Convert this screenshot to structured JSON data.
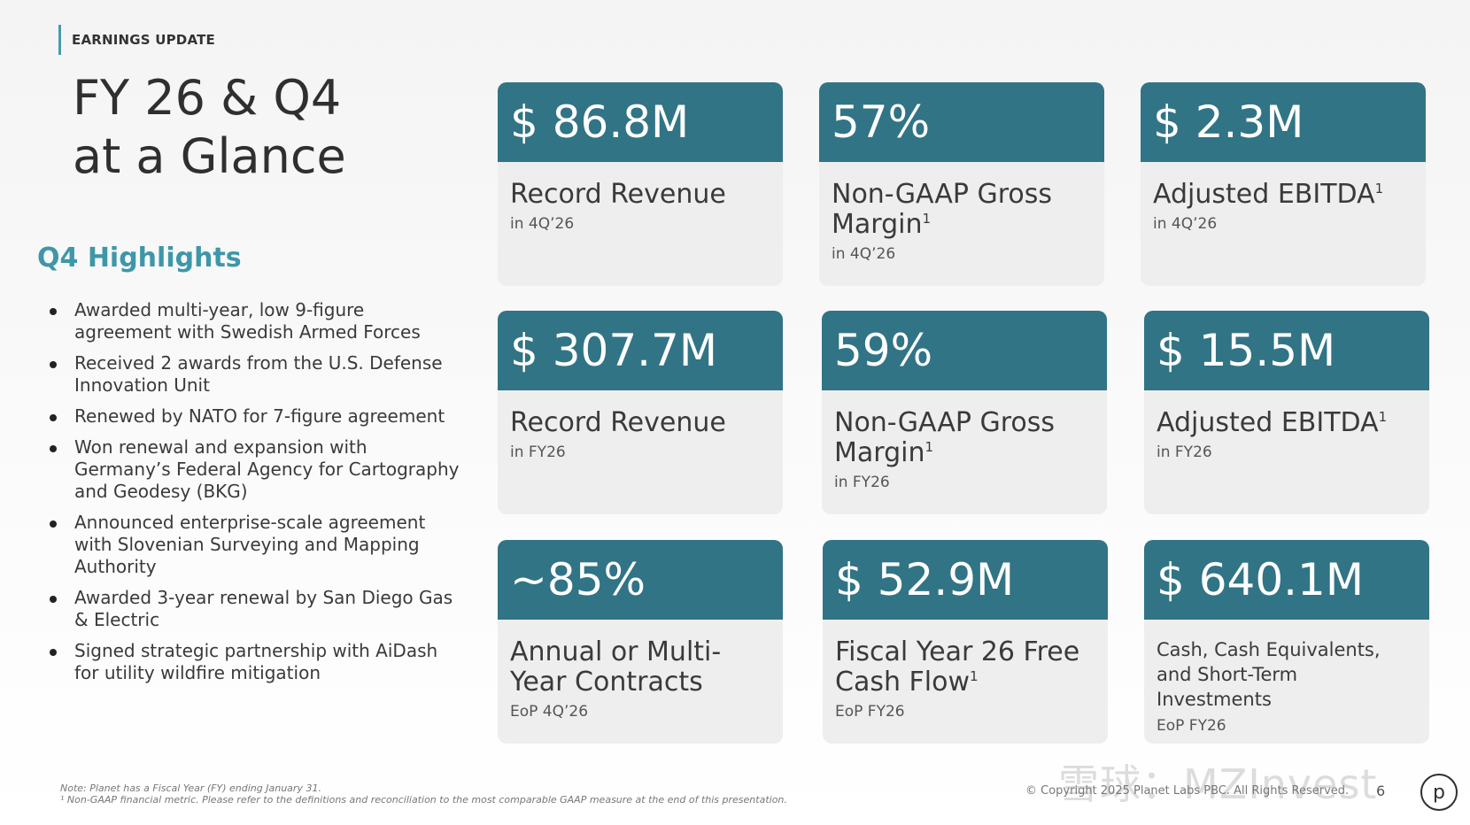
{
  "header": {
    "section_tag": "EARNINGS UPDATE"
  },
  "title": {
    "line1": "FY 26 & Q4",
    "line2": "at a Glance"
  },
  "highlights": {
    "heading": "Q4 Highlights",
    "items": [
      "Awarded multi-year, low 9-figure agreement with Swedish Armed Forces",
      "Received 2 awards from the U.S. Defense Innovation Unit",
      "Renewed by NATO for 7-figure agreement",
      "Won renewal and expansion with Germany’s Federal Agency for Cartography and Geodesy (BKG)",
      "Announced enterprise-scale agreement with Slovenian Surveying and Mapping Authority",
      "Awarded 3-year renewal by San Diego Gas & Electric",
      "Signed strategic partnership with AiDash for utility wildfire mitigation"
    ]
  },
  "cards": [
    {
      "value": "$ 86.8M",
      "label": "Record Revenue",
      "footnote_mark": "",
      "sub": "in 4Q’26"
    },
    {
      "value": "57%",
      "label": "Non-GAAP Gross Margin",
      "footnote_mark": "1",
      "sub": "in 4Q’26"
    },
    {
      "value": "$ 2.3M",
      "label": "Adjusted EBITDA",
      "footnote_mark": "1",
      "sub": "in 4Q’26"
    },
    {
      "value": "$ 307.7M",
      "label": "Record Revenue",
      "footnote_mark": "",
      "sub": "in FY26"
    },
    {
      "value": "59%",
      "label": "Non-GAAP Gross Margin",
      "footnote_mark": "1",
      "sub": "in FY26"
    },
    {
      "value": "$ 15.5M",
      "label": "Adjusted EBITDA",
      "footnote_mark": "1",
      "sub": "in FY26"
    },
    {
      "value": "~85%",
      "label": "Annual or Multi-Year Contracts",
      "footnote_mark": "",
      "sub": "EoP 4Q’26"
    },
    {
      "value": "$ 52.9M",
      "label": "Fiscal Year 26 Free Cash Flow",
      "footnote_mark": "1",
      "sub": "EoP FY26"
    },
    {
      "value": "$ 640.1M",
      "label": "Cash, Cash Equivalents, and Short-Term Investments",
      "footnote_mark": "",
      "sub": "EoP FY26"
    }
  ],
  "footer": {
    "note1": "Note: Planet has a Fiscal Year (FY) ending January 31.",
    "note2": "¹ Non-GAAP financial metric. Please refer to the definitions and reconciliation to the most comparable GAAP measure at the end of this presentation.",
    "copyright": "© Copyright 2025 Planet Labs PBC. All Rights Reserved.",
    "page_number": "6",
    "logo_letter": "p",
    "watermark": "雪球：MZInvest"
  },
  "colors": {
    "card_header": "#317485",
    "heading_accent": "#3e97a8",
    "card_body": "#eeeeee"
  }
}
